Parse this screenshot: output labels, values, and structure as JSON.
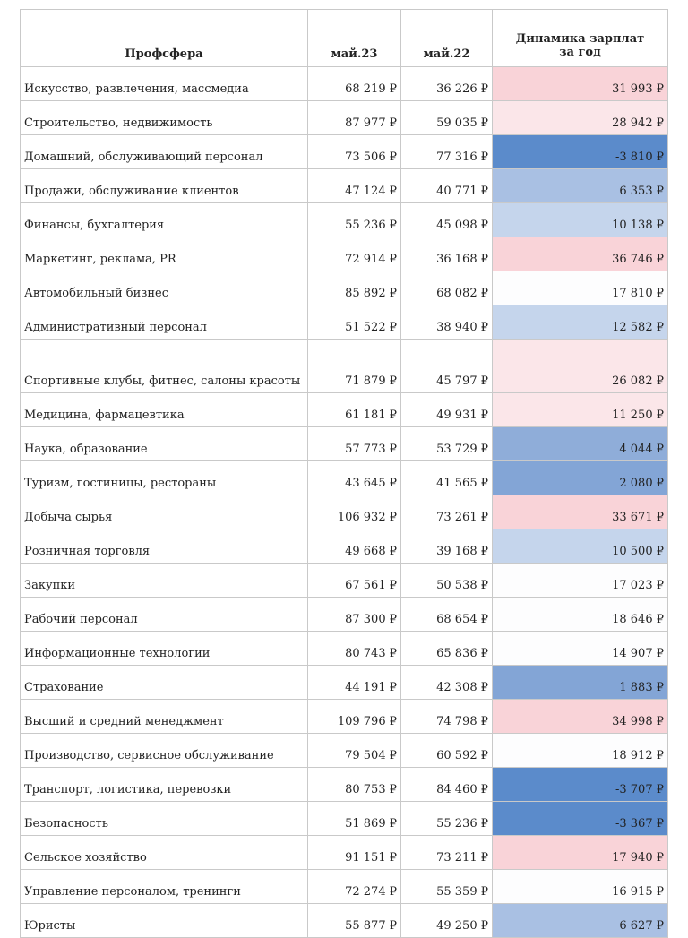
{
  "header": {
    "col_sector": "Профсфера",
    "col_may23": "май.23",
    "col_may22": "май.22",
    "col_dyn_line1": "Динамика зарплат",
    "col_dyn_line2": "за год"
  },
  "colors": {
    "strong_pink": "#f9d3d8",
    "light_pink": "#fbe6e9",
    "neutral": "#fdfdfe",
    "light_blue": "#c5d5ec",
    "mid_blue": "#9ab5dd",
    "strong_blue": "#5b8bcb"
  },
  "rows": [
    {
      "sector": "Искусство, развлечения, массмедиа",
      "may23": "68 219 ₽",
      "may22": "36 226 ₽",
      "dyn": "31 993 ₽",
      "dyn_value": 31993
    },
    {
      "sector": "Строительство, недвижимость",
      "may23": "87 977 ₽",
      "may22": "59 035 ₽",
      "dyn": "28 942 ₽",
      "dyn_value": 28942
    },
    {
      "sector": "Домашний, обслуживающий персонал",
      "may23": "73 506 ₽",
      "may22": "77 316 ₽",
      "dyn": "-3 810 ₽",
      "dyn_value": -3810
    },
    {
      "sector": "Продажи, обслуживание клиентов",
      "may23": "47 124 ₽",
      "may22": "40 771 ₽",
      "dyn": "6 353 ₽",
      "dyn_value": 6353
    },
    {
      "sector": "Финансы, бухгалтерия",
      "may23": "55 236 ₽",
      "may22": "45 098 ₽",
      "dyn": "10 138 ₽",
      "dyn_value": 10138
    },
    {
      "sector": "Маркетинг, реклама, PR",
      "may23": "72 914 ₽",
      "may22": "36 168 ₽",
      "dyn": "36 746 ₽",
      "dyn_value": 36746
    },
    {
      "sector": "Автомобильный бизнес",
      "may23": "85 892 ₽",
      "may22": "68 082 ₽",
      "dyn": "17 810 ₽",
      "dyn_value": 17810
    },
    {
      "sector": "Административный персонал",
      "may23": "51 522 ₽",
      "may22": "38 940 ₽",
      "dyn": "12 582 ₽",
      "dyn_value": 12582
    },
    {
      "sector": "Спортивные клубы, фитнес, салоны красоты",
      "may23": "71 879 ₽",
      "may22": "45 797 ₽",
      "dyn": "26 082 ₽",
      "dyn_value": 26082,
      "tall": true
    },
    {
      "sector": "Медицина, фармацевтика",
      "may23": "61 181 ₽",
      "may22": "49 931 ₽",
      "dyn": "11 250 ₽",
      "dyn_value": 11250
    },
    {
      "sector": "Наука, образование",
      "may23": "57 773 ₽",
      "may22": "53 729 ₽",
      "dyn": "4 044 ₽",
      "dyn_value": 4044
    },
    {
      "sector": "Туризм, гостиницы, рестораны",
      "may23": "43 645 ₽",
      "may22": "41 565 ₽",
      "dyn": "2 080 ₽",
      "dyn_value": 2080
    },
    {
      "sector": "Добыча сырья",
      "may23": "106 932 ₽",
      "may22": "73 261 ₽",
      "dyn": "33 671 ₽",
      "dyn_value": 33671
    },
    {
      "sector": "Розничная торговля",
      "may23": "49 668 ₽",
      "may22": "39 168 ₽",
      "dyn": "10 500 ₽",
      "dyn_value": 10500
    },
    {
      "sector": "Закупки",
      "may23": "67 561 ₽",
      "may22": "50 538 ₽",
      "dyn": "17 023 ₽",
      "dyn_value": 17023
    },
    {
      "sector": "Рабочий персонал",
      "may23": "87 300 ₽",
      "may22": "68 654 ₽",
      "dyn": "18 646 ₽",
      "dyn_value": 18646
    },
    {
      "sector": "Информационные технологии",
      "may23": "80 743 ₽",
      "may22": "65 836 ₽",
      "dyn": "14 907 ₽",
      "dyn_value": 14907
    },
    {
      "sector": "Страхование",
      "may23": "44 191 ₽",
      "may22": "42 308 ₽",
      "dyn": "1 883 ₽",
      "dyn_value": 1883
    },
    {
      "sector": "Высший и средний менеджмент",
      "may23": "109 796 ₽",
      "may22": "74 798 ₽",
      "dyn": "34 998 ₽",
      "dyn_value": 34998
    },
    {
      "sector": "Производство, сервисное обслуживание",
      "may23": "79 504 ₽",
      "may22": "60 592 ₽",
      "dyn": "18 912 ₽",
      "dyn_value": 18912
    },
    {
      "sector": "Транспорт, логистика, перевозки",
      "may23": "80 753 ₽",
      "may22": "84 460 ₽",
      "dyn": "-3 707 ₽",
      "dyn_value": -3707
    },
    {
      "sector": "Безопасность",
      "may23": "51 869 ₽",
      "may22": "55 236 ₽",
      "dyn": "-3 367 ₽",
      "dyn_value": -3367
    },
    {
      "sector": "Сельское хозяйство",
      "may23": "91 151 ₽",
      "may22": "73 211 ₽",
      "dyn": "17 940 ₽",
      "dyn_value": 17940
    },
    {
      "sector": "Управление персоналом, тренинги",
      "may23": "72 274 ₽",
      "may22": "55 359 ₽",
      "dyn": "16 915 ₽",
      "dyn_value": 16915
    },
    {
      "sector": "Юристы",
      "may23": "55 877 ₽",
      "may22": "49 250 ₽",
      "dyn": "6 627 ₽",
      "dyn_value": 6627
    }
  ]
}
